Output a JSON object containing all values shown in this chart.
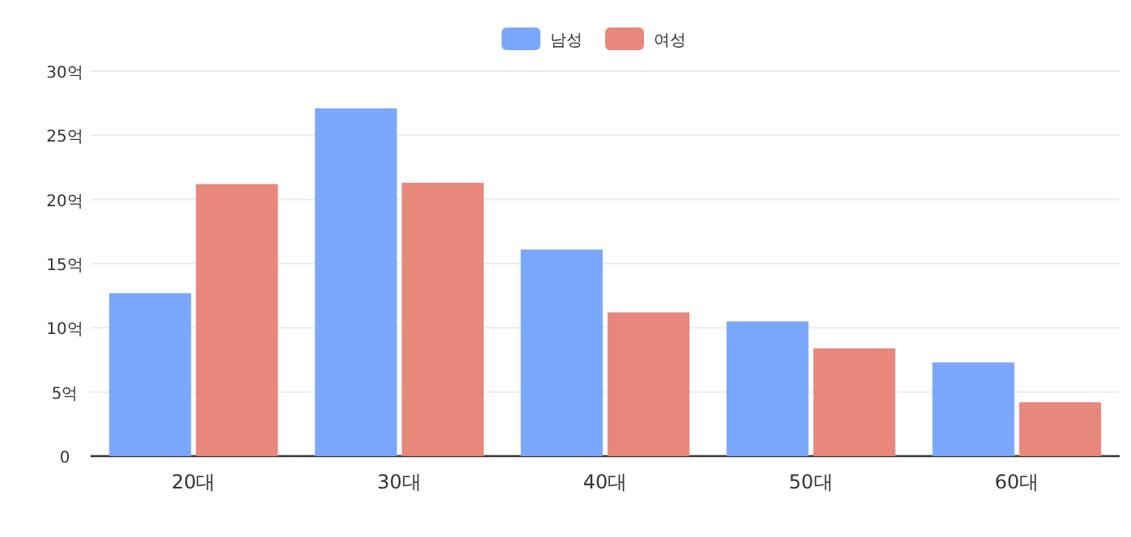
{
  "chart_data": {
    "type": "bar",
    "categories": [
      "20대",
      "30대",
      "40대",
      "50대",
      "60대"
    ],
    "series": [
      {
        "name": "남성",
        "color": "#7ba7fc",
        "values": [
          12.7,
          27.1,
          16.1,
          10.5,
          7.3
        ]
      },
      {
        "name": "여성",
        "color": "#e8877c",
        "values": [
          21.2,
          21.3,
          11.2,
          8.4,
          4.2
        ]
      }
    ],
    "ylim": [
      0,
      30
    ],
    "yticks": [
      0,
      {
        "value": 5,
        "label": "5억"
      },
      {
        "value": 10,
        "label": "10억"
      },
      {
        "value": 15,
        "label": "15억"
      },
      {
        "value": 20,
        "label": "20억"
      },
      {
        "value": 25,
        "label": "25억"
      },
      {
        "value": 30,
        "label": "30억"
      }
    ],
    "grid": "y",
    "legend": "top"
  }
}
